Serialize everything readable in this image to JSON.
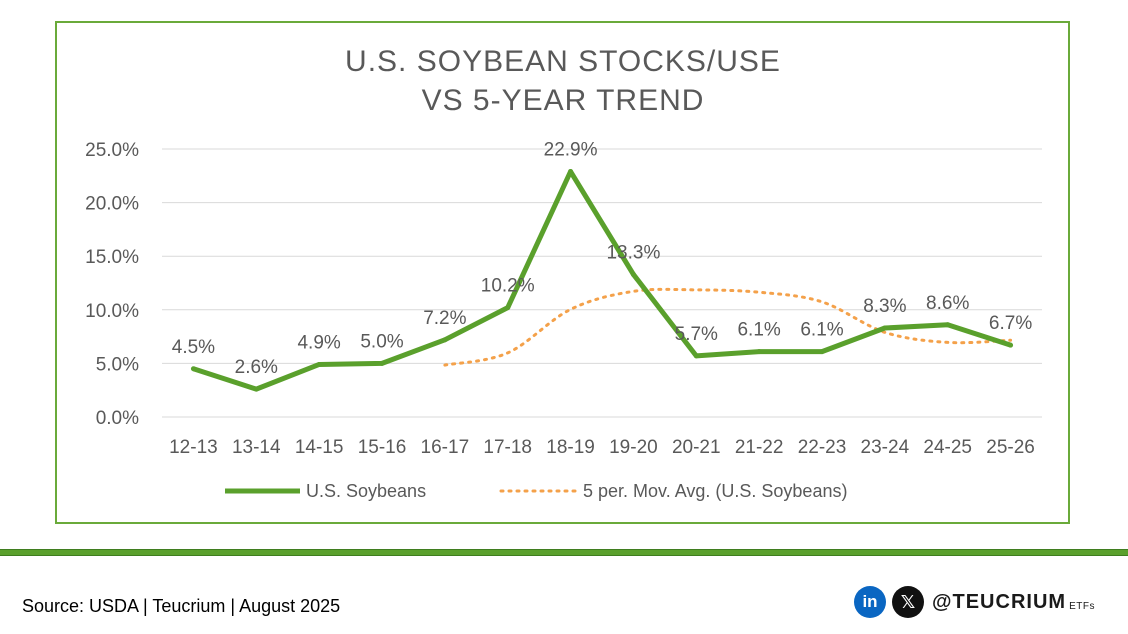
{
  "chart_data": {
    "type": "line",
    "title_lines": [
      "U.S. SOYBEAN STOCKS/USE",
      "VS 5-YEAR TREND"
    ],
    "categories": [
      "12-13",
      "13-14",
      "14-15",
      "15-16",
      "16-17",
      "17-18",
      "18-19",
      "19-20",
      "20-21",
      "21-22",
      "22-23",
      "23-24",
      "24-25",
      "25-26"
    ],
    "y_ticks": [
      "0.0%",
      "5.0%",
      "10.0%",
      "15.0%",
      "20.0%",
      "25.0%"
    ],
    "ylim": [
      0,
      25
    ],
    "grid": true,
    "legend_position": "bottom",
    "series": [
      {
        "name": "U.S. Soybeans",
        "style": "solid",
        "color": "#5aa02c",
        "values": [
          4.5,
          2.6,
          4.9,
          5.0,
          7.2,
          10.2,
          22.9,
          13.3,
          5.7,
          6.1,
          6.1,
          8.3,
          8.6,
          6.7
        ],
        "labels": [
          "4.5%",
          "2.6%",
          "4.9%",
          "5.0%",
          "7.2%",
          "10.2%",
          "22.9%",
          "13.3%",
          "5.7%",
          "6.1%",
          "6.1%",
          "8.3%",
          "8.6%",
          "6.7%"
        ]
      },
      {
        "name": "5 per. Mov. Avg. (U.S. Soybeans)",
        "style": "dotted",
        "color": "#f4a14a",
        "values": [
          null,
          null,
          null,
          null,
          4.84,
          5.98,
          10.04,
          11.72,
          11.86,
          11.64,
          10.74,
          7.9,
          6.96,
          7.16
        ]
      }
    ]
  },
  "footer": {
    "source": "Source: USDA | Teucrium | August 2025",
    "linkedin_glyph": "in",
    "x_glyph": "𝕏",
    "handle": "@TEUCRIUM",
    "handle_suffix": "ETFs"
  }
}
